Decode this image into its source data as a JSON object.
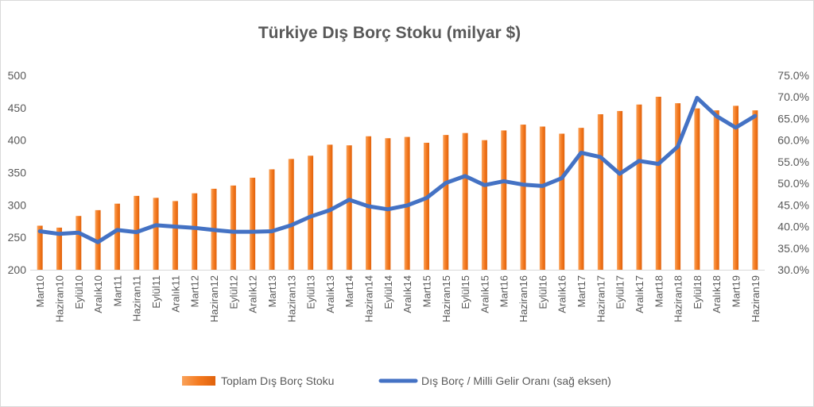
{
  "chart_data": {
    "type": "bar",
    "title": "Türkiye Dış Borç Stoku (milyar $)",
    "categories": [
      "Mart10",
      "Haziran10",
      "Eylül10",
      "Aralık10",
      "Mart11",
      "Haziran11",
      "Eylül11",
      "Aralık11",
      "Mart12",
      "Haziran12",
      "Eylül12",
      "Aralık12",
      "Mart13",
      "Haziran13",
      "Eylül13",
      "Aralık13",
      "Mart14",
      "Haziran14",
      "Eylül14",
      "Aralık14",
      "Mart15",
      "Haziran15",
      "Eylül15",
      "Aralık15",
      "Mart16",
      "Haziran16",
      "Eylül16",
      "Aralık16",
      "Mart17",
      "Haziran17",
      "Eylül17",
      "Aralık17",
      "Mart18",
      "Haziran18",
      "Eylül18",
      "Aralık18",
      "Mart19",
      "Haziran19"
    ],
    "series": [
      {
        "name": "Toplam Dış Borç Stoku",
        "type": "bar",
        "axis": "left",
        "color": "#f47a20",
        "values": [
          268,
          265,
          283,
          292,
          302,
          314,
          311,
          306,
          318,
          325,
          330,
          342,
          355,
          371,
          376,
          393,
          392,
          406,
          403,
          405,
          396,
          408,
          411,
          400,
          415,
          424,
          421,
          410,
          419,
          440,
          445,
          455,
          467,
          457,
          449,
          446,
          453,
          446
        ]
      },
      {
        "name": "Dış Borç / Milli Gelir Oranı (sağ eksen)",
        "type": "line",
        "axis": "right",
        "color": "#4472c4",
        "values": [
          0.389,
          0.383,
          0.386,
          0.364,
          0.392,
          0.387,
          0.403,
          0.4,
          0.397,
          0.392,
          0.388,
          0.388,
          0.389,
          0.403,
          0.423,
          0.438,
          0.462,
          0.447,
          0.44,
          0.449,
          0.466,
          0.501,
          0.517,
          0.496,
          0.505,
          0.497,
          0.494,
          0.512,
          0.571,
          0.561,
          0.522,
          0.552,
          0.545,
          0.585,
          0.698,
          0.656,
          0.629,
          0.656
        ]
      }
    ],
    "ylim": [
      200,
      500
    ],
    "yticks": [
      "500",
      "450",
      "400",
      "350",
      "300",
      "250",
      "200"
    ],
    "y2lim": [
      0.3,
      0.75
    ],
    "y2ticks": [
      "75.0%",
      "70.0%",
      "65.0%",
      "60.0%",
      "55.0%",
      "50.0%",
      "45.0%",
      "40.0%",
      "35.0%",
      "30.0%"
    ],
    "grid": false,
    "legend_position": "bottom"
  }
}
